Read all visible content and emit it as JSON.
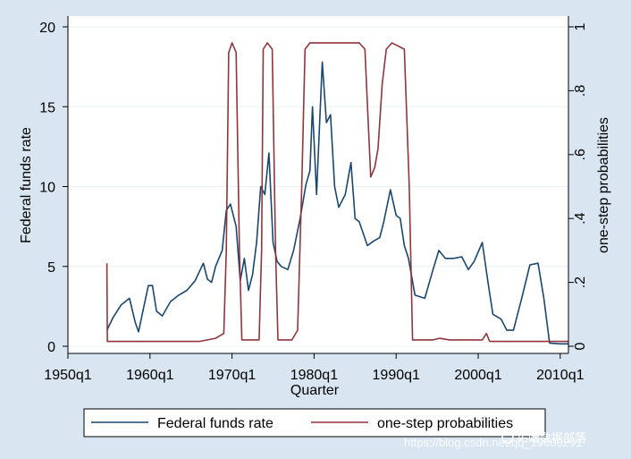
{
  "chart_data": {
    "type": "line",
    "xlabel": "Quarter",
    "ylabel": "Federal funds rate",
    "y2label": "one-step probabilities",
    "xlim": [
      1950,
      2011
    ],
    "ylim": [
      0,
      20
    ],
    "y2lim": [
      0,
      1
    ],
    "x_ticks": [
      {
        "value": 1950,
        "label": "1950q1"
      },
      {
        "value": 1960,
        "label": "1960q1"
      },
      {
        "value": 1970,
        "label": "1970q1"
      },
      {
        "value": 1980,
        "label": "1980q1"
      },
      {
        "value": 1990,
        "label": "1990q1"
      },
      {
        "value": 2000,
        "label": "2000q1"
      },
      {
        "value": 2010,
        "label": "2010q1"
      }
    ],
    "y_ticks": [
      {
        "value": 0,
        "label": "0"
      },
      {
        "value": 5,
        "label": "5"
      },
      {
        "value": 10,
        "label": "10"
      },
      {
        "value": 15,
        "label": "15"
      },
      {
        "value": 20,
        "label": "20"
      }
    ],
    "y2_ticks": [
      {
        "value": 0,
        "label": "0"
      },
      {
        "value": 0.2,
        "label": ".2"
      },
      {
        "value": 0.4,
        "label": ".4"
      },
      {
        "value": 0.6,
        "label": ".6"
      },
      {
        "value": 0.8,
        "label": ".8"
      },
      {
        "value": 1,
        "label": "1"
      }
    ],
    "series": [
      {
        "name": "Federal funds rate",
        "color": "#1a476f",
        "axis": "left",
        "points": [
          [
            1954.75,
            1.0
          ],
          [
            1955.5,
            1.8
          ],
          [
            1956.5,
            2.6
          ],
          [
            1957.5,
            3.0
          ],
          [
            1958.2,
            1.5
          ],
          [
            1958.6,
            0.9
          ],
          [
            1959.3,
            2.6
          ],
          [
            1959.8,
            3.8
          ],
          [
            1960.3,
            3.8
          ],
          [
            1960.8,
            2.2
          ],
          [
            1961.5,
            1.9
          ],
          [
            1962.5,
            2.8
          ],
          [
            1963.5,
            3.2
          ],
          [
            1964.5,
            3.5
          ],
          [
            1965.5,
            4.1
          ],
          [
            1966.5,
            5.2
          ],
          [
            1967.0,
            4.2
          ],
          [
            1967.5,
            4.0
          ],
          [
            1968.0,
            5.0
          ],
          [
            1968.8,
            6.0
          ],
          [
            1969.3,
            8.5
          ],
          [
            1969.8,
            8.9
          ],
          [
            1970.5,
            7.5
          ],
          [
            1971.0,
            4.1
          ],
          [
            1971.5,
            5.5
          ],
          [
            1972.0,
            3.5
          ],
          [
            1972.5,
            4.5
          ],
          [
            1973.0,
            6.5
          ],
          [
            1973.5,
            10.0
          ],
          [
            1974.0,
            9.5
          ],
          [
            1974.5,
            12.1
          ],
          [
            1975.0,
            6.5
          ],
          [
            1975.5,
            5.3
          ],
          [
            1976.0,
            5.0
          ],
          [
            1976.8,
            4.8
          ],
          [
            1977.5,
            6.0
          ],
          [
            1978.3,
            8.0
          ],
          [
            1979.0,
            10.1
          ],
          [
            1979.5,
            11.0
          ],
          [
            1979.8,
            15.0
          ],
          [
            1980.3,
            9.5
          ],
          [
            1980.8,
            15.5
          ],
          [
            1981.0,
            17.8
          ],
          [
            1981.5,
            14.0
          ],
          [
            1982.0,
            14.5
          ],
          [
            1982.5,
            10.0
          ],
          [
            1983.0,
            8.7
          ],
          [
            1983.8,
            9.5
          ],
          [
            1984.5,
            11.5
          ],
          [
            1985.0,
            8.0
          ],
          [
            1985.5,
            7.8
          ],
          [
            1986.5,
            6.3
          ],
          [
            1987.3,
            6.6
          ],
          [
            1988.0,
            6.8
          ],
          [
            1988.5,
            7.8
          ],
          [
            1989.3,
            9.8
          ],
          [
            1990.0,
            8.2
          ],
          [
            1990.5,
            8.0
          ],
          [
            1991.0,
            6.3
          ],
          [
            1991.5,
            5.5
          ],
          [
            1992.3,
            3.2
          ],
          [
            1993.5,
            3.0
          ],
          [
            1994.5,
            4.8
          ],
          [
            1995.2,
            6.0
          ],
          [
            1996.0,
            5.5
          ],
          [
            1997.0,
            5.5
          ],
          [
            1998.0,
            5.6
          ],
          [
            1998.8,
            4.8
          ],
          [
            1999.5,
            5.3
          ],
          [
            2000.5,
            6.5
          ],
          [
            2001.2,
            4.0
          ],
          [
            2001.8,
            2.0
          ],
          [
            2002.8,
            1.7
          ],
          [
            2003.5,
            1.0
          ],
          [
            2004.3,
            1.0
          ],
          [
            2005.3,
            3.0
          ],
          [
            2006.3,
            5.1
          ],
          [
            2007.3,
            5.2
          ],
          [
            2008.0,
            3.0
          ],
          [
            2008.7,
            0.2
          ],
          [
            2010.0,
            0.15
          ],
          [
            2011.0,
            0.15
          ]
        ]
      },
      {
        "name": "one-step probabilities",
        "color": "#90353b",
        "axis": "right",
        "points": [
          [
            1954.75,
            0.26
          ],
          [
            1954.8,
            0.015
          ],
          [
            1960,
            0.015
          ],
          [
            1966,
            0.015
          ],
          [
            1968,
            0.025
          ],
          [
            1969.0,
            0.04
          ],
          [
            1969.3,
            0.3
          ],
          [
            1969.6,
            0.92
          ],
          [
            1970.0,
            0.95
          ],
          [
            1970.5,
            0.92
          ],
          [
            1970.9,
            0.3
          ],
          [
            1971.2,
            0.02
          ],
          [
            1973.3,
            0.02
          ],
          [
            1973.6,
            0.3
          ],
          [
            1973.8,
            0.93
          ],
          [
            1974.3,
            0.95
          ],
          [
            1974.9,
            0.93
          ],
          [
            1975.3,
            0.3
          ],
          [
            1975.6,
            0.02
          ],
          [
            1977.3,
            0.02
          ],
          [
            1978.0,
            0.05
          ],
          [
            1978.5,
            0.5
          ],
          [
            1978.9,
            0.93
          ],
          [
            1979.5,
            0.95
          ],
          [
            1985.5,
            0.95
          ],
          [
            1986.2,
            0.93
          ],
          [
            1986.6,
            0.7
          ],
          [
            1986.9,
            0.53
          ],
          [
            1987.4,
            0.56
          ],
          [
            1987.8,
            0.62
          ],
          [
            1988.3,
            0.82
          ],
          [
            1988.8,
            0.93
          ],
          [
            1989.5,
            0.95
          ],
          [
            1991.0,
            0.93
          ],
          [
            1991.6,
            0.5
          ],
          [
            1992.0,
            0.02
          ],
          [
            1994.5,
            0.02
          ],
          [
            1995.3,
            0.025
          ],
          [
            1996.5,
            0.02
          ],
          [
            2000.5,
            0.02
          ],
          [
            2001.0,
            0.04
          ],
          [
            2001.4,
            0.015
          ],
          [
            2008.5,
            0.015
          ],
          [
            2009.0,
            0.015
          ],
          [
            2011.0,
            0.015
          ]
        ]
      }
    ]
  },
  "legend": {
    "items": [
      {
        "label": "Federal funds rate",
        "color": "#1a476f"
      },
      {
        "label": "one-step probabilities",
        "color": "#90353b"
      }
    ]
  },
  "watermark": {
    "url": "https://blog.csdn.net/qq_19600291",
    "brand": "拓端数据部落"
  }
}
